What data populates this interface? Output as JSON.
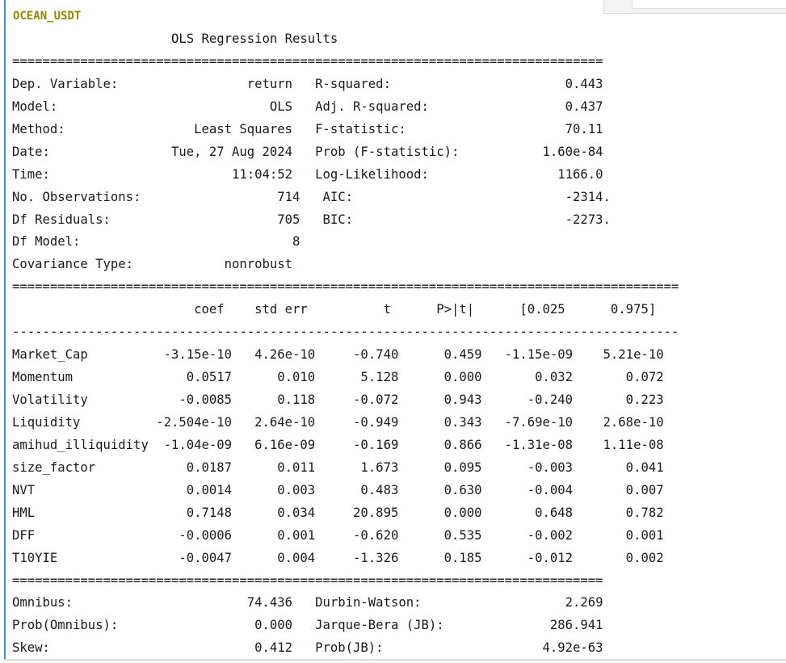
{
  "cell_output": {
    "title": "OCEAN_USDT",
    "summary_lines": [
      "                     OLS Regression Results                            ",
      "==============================================================================",
      "Dep. Variable:                 return   R-squared:                       0.443",
      "Model:                            OLS   Adj. R-squared:                  0.437",
      "Method:                 Least Squares   F-statistic:                     70.11",
      "Date:                Tue, 27 Aug 2024   Prob (F-statistic):           1.60e-84",
      "Time:                        11:04:52   Log-Likelihood:                 1166.0",
      "No. Observations:                  714   AIC:                            -2314.",
      "Df Residuals:                      705   BIC:                            -2273.",
      "Df Model:                            8                                         ",
      "Covariance Type:            nonrobust                                         ",
      "========================================================================================",
      "                        coef    std err          t      P>|t|      [0.025      0.975]",
      "----------------------------------------------------------------------------------------",
      "Market_Cap          -3.15e-10   4.26e-10     -0.740      0.459   -1.15e-09    5.21e-10",
      "Momentum               0.0517      0.010      5.128      0.000       0.032       0.072",
      "Volatility            -0.0085      0.118     -0.072      0.943      -0.240       0.223",
      "Liquidity          -2.504e-10   2.64e-10     -0.949      0.343   -7.69e-10    2.68e-10",
      "amihud_illiquidity  -1.04e-09   6.16e-09     -0.169      0.866   -1.31e-08    1.11e-08",
      "size_factor            0.0187      0.011      1.673      0.095      -0.003       0.041",
      "NVT                    0.0014      0.003      0.483      0.630      -0.004       0.007",
      "HML                    0.7148      0.034     20.895      0.000       0.648       0.782",
      "DFF                   -0.0006      0.001     -0.620      0.535      -0.002       0.001",
      "T10YIE                -0.0047      0.004     -1.326      0.185      -0.012       0.002",
      "==============================================================================",
      "Omnibus:                       74.436   Durbin-Watson:                   2.269",
      "Prob(Omnibus):                  0.000   Jarque-Bera (JB):              286.941",
      "Skew:                           0.412   Prob(JB):                     4.92e-63"
    ]
  },
  "colors": {
    "title": "#8b8b00",
    "text": "#1a1a1a",
    "left_rule": "#3d8fd6"
  }
}
